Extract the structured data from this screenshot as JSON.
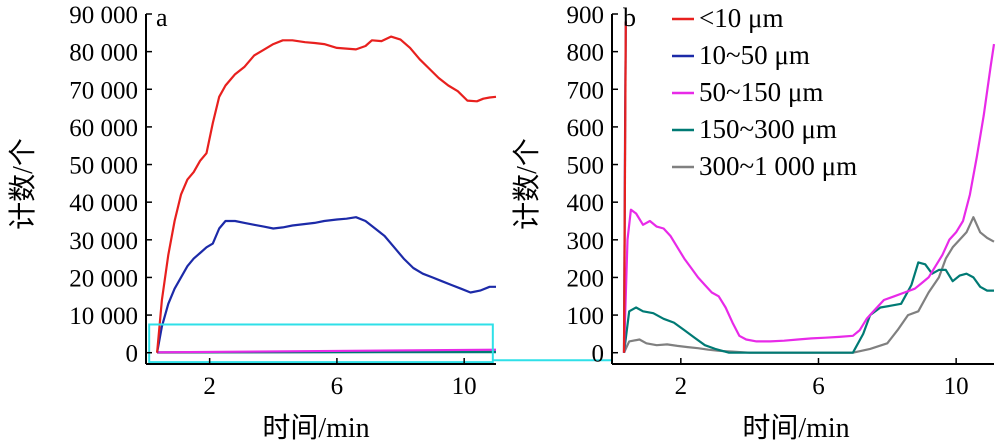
{
  "chart_data": [
    {
      "type": "line",
      "panel_label": "a",
      "xlabel": "时间/min",
      "ylabel": "计数/个",
      "xlim": [
        0,
        11
      ],
      "ylim": [
        -3000,
        90000
      ],
      "x_ticks": [
        2,
        6,
        10
      ],
      "x_tick_labels": [
        "2",
        "6",
        "10"
      ],
      "y_ticks": [
        0,
        10000,
        20000,
        30000,
        40000,
        50000,
        60000,
        70000,
        80000,
        90000
      ],
      "y_tick_labels": [
        "0",
        "10 000",
        "20 000",
        "30 000",
        "40 000",
        "50 000",
        "60 000",
        "70 000",
        "80 000",
        "90 000"
      ],
      "grid": false,
      "inset_box": {
        "x": [
          0.1,
          10.9
        ],
        "y": [
          -2500,
          7500
        ],
        "color": "#2fe0e8"
      },
      "series": [
        {
          "key": "s1",
          "color": "#e8201e",
          "x": [
            0.35,
            0.5,
            0.7,
            0.9,
            1.1,
            1.3,
            1.5,
            1.7,
            1.9,
            2.1,
            2.3,
            2.5,
            2.8,
            3.1,
            3.4,
            3.7,
            4.0,
            4.3,
            4.6,
            5.0,
            5.3,
            5.6,
            6.0,
            6.3,
            6.6,
            6.9,
            7.1,
            7.4,
            7.7,
            8.0,
            8.3,
            8.6,
            8.9,
            9.2,
            9.5,
            9.8,
            10.1,
            10.4,
            10.6,
            10.8,
            11.0
          ],
          "y": [
            0,
            14000,
            26000,
            35000,
            42000,
            46000,
            48000,
            51000,
            53000,
            61000,
            68000,
            71000,
            74000,
            76000,
            79000,
            80500,
            82000,
            83000,
            83000,
            82500,
            82300,
            82000,
            81000,
            80800,
            80600,
            81500,
            83000,
            82800,
            84000,
            83200,
            81000,
            78000,
            75500,
            73000,
            71000,
            69500,
            67000,
            66800,
            67500,
            67800,
            68000
          ]
        },
        {
          "key": "s2",
          "color": "#1c2aa8",
          "x": [
            0.35,
            0.5,
            0.7,
            0.9,
            1.1,
            1.3,
            1.5,
            1.7,
            1.9,
            2.1,
            2.3,
            2.5,
            2.8,
            3.1,
            3.4,
            3.7,
            4.0,
            4.3,
            4.6,
            5.0,
            5.3,
            5.6,
            6.0,
            6.3,
            6.6,
            6.9,
            7.2,
            7.5,
            7.8,
            8.1,
            8.4,
            8.7,
            9.0,
            9.3,
            9.6,
            9.9,
            10.2,
            10.5,
            10.8,
            11.0
          ],
          "y": [
            0,
            7000,
            13000,
            17000,
            20000,
            23000,
            25000,
            26500,
            28000,
            29000,
            33000,
            35000,
            35000,
            34500,
            34000,
            33500,
            33000,
            33300,
            33800,
            34200,
            34500,
            35000,
            35400,
            35600,
            36000,
            35000,
            33000,
            31000,
            28000,
            25000,
            22500,
            21000,
            20000,
            19000,
            18000,
            17000,
            16000,
            16500,
            17500,
            17500
          ]
        },
        {
          "key": "s3",
          "color": "#e82ae8",
          "x": [
            0.35,
            11.0
          ],
          "y": [
            100,
            800
          ]
        },
        {
          "key": "s4",
          "color": "#007a74",
          "x": [
            0.35,
            11.0
          ],
          "y": [
            120,
            160
          ]
        },
        {
          "key": "s5",
          "color": "#808080",
          "x": [
            0.35,
            11.0
          ],
          "y": [
            30,
            300
          ]
        }
      ]
    },
    {
      "type": "line",
      "panel_label": "b",
      "xlabel": "时间/min",
      "ylabel": "计数/个",
      "xlim": [
        0,
        11.1
      ],
      "ylim": [
        -30,
        900
      ],
      "x_ticks": [
        2,
        6,
        10
      ],
      "x_tick_labels": [
        "2",
        "6",
        "10"
      ],
      "y_ticks": [
        0,
        100,
        200,
        300,
        400,
        500,
        600,
        700,
        800,
        900
      ],
      "y_tick_labels": [
        "0",
        "100",
        "200",
        "300",
        "400",
        "500",
        "600",
        "700",
        "800",
        "900"
      ],
      "grid": false,
      "legend_position": "top-center",
      "series": [
        {
          "key": "s1",
          "name": "<10 μm",
          "color": "#e8201e",
          "x": [
            0.35,
            0.4
          ],
          "y": [
            0,
            880
          ]
        },
        {
          "key": "s2",
          "name": "10~50 μm",
          "color": "#1c2aa8",
          "x": [
            0.35,
            0.38,
            0.4
          ],
          "y": [
            0,
            600,
            880
          ]
        },
        {
          "key": "s3",
          "name": "50~150 μm",
          "color": "#e82ae8",
          "x": [
            0.35,
            0.45,
            0.55,
            0.7,
            0.9,
            1.1,
            1.3,
            1.5,
            1.7,
            1.9,
            2.1,
            2.3,
            2.5,
            2.7,
            2.9,
            3.1,
            3.3,
            3.5,
            3.7,
            3.9,
            4.2,
            4.6,
            5.0,
            5.4,
            5.8,
            6.2,
            6.6,
            7.0,
            7.2,
            7.4,
            7.6,
            7.9,
            8.2,
            8.5,
            8.8,
            9.0,
            9.2,
            9.4,
            9.6,
            9.8,
            10.0,
            10.2,
            10.4,
            10.6,
            10.8,
            11.0,
            11.1
          ],
          "y": [
            0,
            300,
            380,
            370,
            340,
            350,
            335,
            330,
            310,
            280,
            250,
            225,
            200,
            180,
            160,
            150,
            120,
            80,
            45,
            35,
            30,
            30,
            32,
            35,
            38,
            40,
            42,
            45,
            60,
            90,
            110,
            140,
            150,
            160,
            170,
            185,
            200,
            230,
            260,
            300,
            320,
            350,
            420,
            520,
            630,
            760,
            820
          ]
        },
        {
          "key": "s4",
          "name": "150~300 μm",
          "color": "#007a74",
          "x": [
            0.35,
            0.5,
            0.7,
            0.9,
            1.2,
            1.5,
            1.8,
            2.1,
            2.4,
            2.7,
            3.0,
            3.2,
            3.4,
            3.6,
            4.0,
            5.0,
            6.0,
            7.0,
            7.3,
            7.5,
            7.8,
            8.1,
            8.4,
            8.7,
            8.9,
            9.1,
            9.3,
            9.5,
            9.7,
            9.9,
            10.1,
            10.3,
            10.5,
            10.7,
            10.9,
            11.1
          ],
          "y": [
            0,
            110,
            120,
            110,
            105,
            90,
            80,
            60,
            40,
            20,
            10,
            5,
            0,
            0,
            0,
            0,
            0,
            0,
            50,
            100,
            120,
            125,
            130,
            180,
            240,
            235,
            210,
            220,
            220,
            190,
            205,
            210,
            200,
            175,
            165,
            165
          ]
        },
        {
          "key": "s5",
          "name": "300~1 000 μm",
          "color": "#808080",
          "x": [
            0.35,
            0.5,
            0.8,
            1.0,
            1.3,
            1.6,
            1.9,
            2.2,
            2.5,
            2.8,
            3.1,
            3.5,
            4.0,
            5.0,
            6.0,
            7.0,
            7.5,
            8.0,
            8.3,
            8.6,
            8.9,
            9.2,
            9.5,
            9.7,
            9.9,
            10.1,
            10.3,
            10.5,
            10.7,
            10.9,
            11.1
          ],
          "y": [
            0,
            30,
            35,
            25,
            20,
            22,
            18,
            15,
            12,
            8,
            5,
            3,
            0,
            0,
            0,
            0,
            10,
            25,
            60,
            100,
            110,
            160,
            200,
            250,
            280,
            300,
            320,
            360,
            320,
            305,
            295
          ]
        }
      ]
    }
  ]
}
